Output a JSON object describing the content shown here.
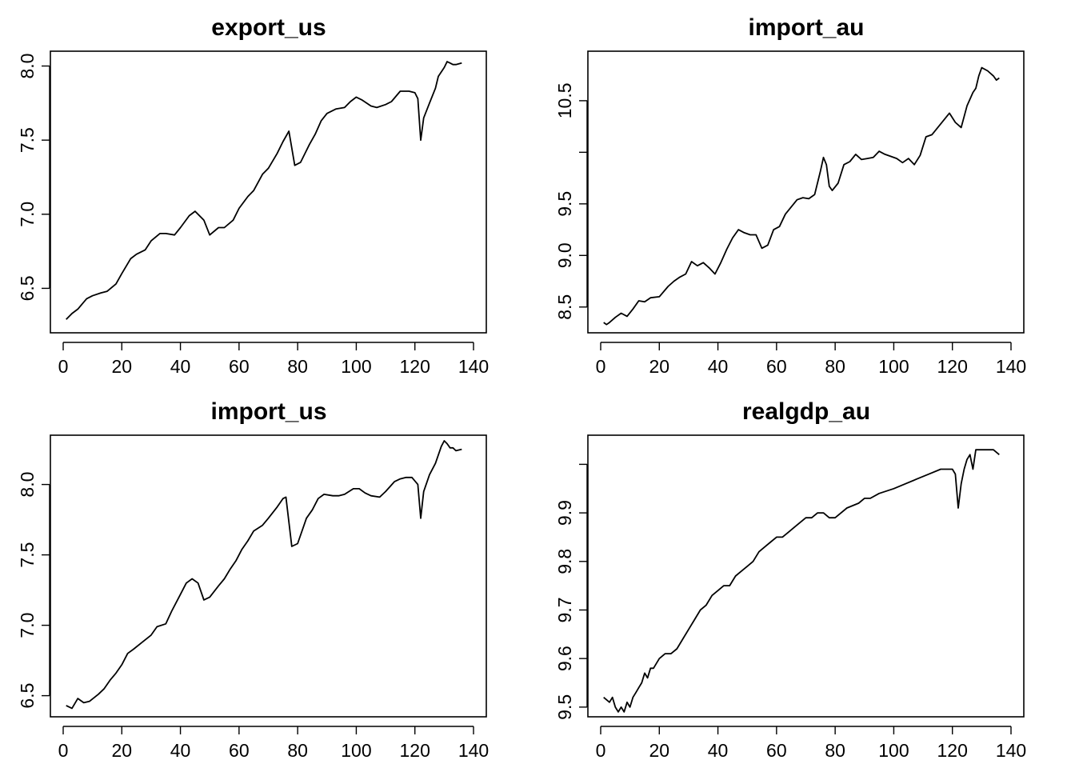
{
  "chart_data": [
    {
      "type": "line",
      "title": "export_us",
      "xlabel": "",
      "ylabel": "",
      "xlim": [
        0,
        140
      ],
      "ylim": [
        6.2,
        8.1
      ],
      "xticks": [
        0,
        20,
        40,
        60,
        80,
        100,
        120,
        140
      ],
      "yticks": [
        6.5,
        7.0,
        7.5,
        8.0
      ],
      "ytick_labels": [
        "6.5",
        "7.0",
        "7.5",
        "8.0"
      ],
      "grid": false,
      "series": [
        {
          "x": [
            1,
            3,
            5,
            8,
            10,
            13,
            15,
            18,
            20,
            23,
            25,
            28,
            30,
            33,
            35,
            38,
            40,
            43,
            45,
            48,
            50,
            53,
            55,
            58,
            60,
            63,
            65,
            68,
            70,
            73,
            75,
            77,
            79,
            81,
            84,
            86,
            88,
            90,
            93,
            96,
            98,
            100,
            102,
            105,
            107,
            110,
            112,
            115,
            118,
            120,
            121,
            122,
            123,
            125,
            127,
            128,
            130,
            131,
            132,
            133,
            134,
            136
          ],
          "y": [
            6.29,
            6.33,
            6.36,
            6.43,
            6.45,
            6.47,
            6.48,
            6.53,
            6.6,
            6.7,
            6.73,
            6.76,
            6.82,
            6.87,
            6.87,
            6.86,
            6.91,
            6.99,
            7.02,
            6.96,
            6.86,
            6.91,
            6.91,
            6.96,
            7.04,
            7.12,
            7.16,
            7.27,
            7.31,
            7.41,
            7.49,
            7.56,
            7.33,
            7.35,
            7.47,
            7.54,
            7.63,
            7.68,
            7.71,
            7.72,
            7.76,
            7.79,
            7.77,
            7.73,
            7.72,
            7.74,
            7.76,
            7.83,
            7.83,
            7.82,
            7.78,
            7.5,
            7.65,
            7.75,
            7.85,
            7.93,
            7.99,
            8.03,
            8.02,
            8.01,
            8.01,
            8.02
          ]
        }
      ]
    },
    {
      "type": "line",
      "title": "import_au",
      "xlabel": "",
      "ylabel": "",
      "xlim": [
        0,
        140
      ],
      "ylim": [
        8.25,
        10.98
      ],
      "xticks": [
        0,
        20,
        40,
        60,
        80,
        100,
        120,
        140
      ],
      "yticks": [
        8.5,
        9.0,
        9.5,
        10.0,
        10.5
      ],
      "ytick_labels": [
        "8.5",
        "9.0",
        "9.5",
        "",
        "10.5"
      ],
      "grid": false,
      "series": [
        {
          "x": [
            1,
            2,
            3,
            5,
            7,
            9,
            11,
            13,
            15,
            17,
            20,
            23,
            25,
            27,
            29,
            31,
            33,
            35,
            37,
            39,
            41,
            43,
            45,
            47,
            49,
            51,
            53,
            55,
            57,
            59,
            61,
            63,
            65,
            67,
            69,
            71,
            73,
            75,
            76,
            77,
            78,
            79,
            81,
            83,
            85,
            87,
            89,
            91,
            93,
            95,
            97,
            99,
            101,
            103,
            105,
            107,
            109,
            111,
            113,
            115,
            117,
            119,
            121,
            123,
            125,
            127,
            128,
            129,
            130,
            132,
            134,
            135,
            136
          ],
          "y": [
            8.35,
            8.33,
            8.35,
            8.4,
            8.44,
            8.41,
            8.48,
            8.56,
            8.55,
            8.59,
            8.6,
            8.7,
            8.75,
            8.79,
            8.82,
            8.94,
            8.9,
            8.93,
            8.88,
            8.82,
            8.93,
            9.06,
            9.17,
            9.25,
            9.22,
            9.2,
            9.2,
            9.07,
            9.1,
            9.25,
            9.28,
            9.4,
            9.47,
            9.54,
            9.56,
            9.55,
            9.59,
            9.82,
            9.95,
            9.88,
            9.67,
            9.63,
            9.7,
            9.88,
            9.91,
            9.98,
            9.93,
            9.94,
            9.95,
            10.01,
            9.98,
            9.96,
            9.94,
            9.9,
            9.94,
            9.88,
            9.97,
            10.15,
            10.17,
            10.24,
            10.31,
            10.38,
            10.29,
            10.24,
            10.45,
            10.58,
            10.62,
            10.74,
            10.82,
            10.79,
            10.74,
            10.7,
            10.72
          ]
        }
      ]
    },
    {
      "type": "line",
      "title": "import_us",
      "xlabel": "",
      "ylabel": "",
      "xlim": [
        0,
        140
      ],
      "ylim": [
        6.35,
        8.35
      ],
      "xticks": [
        0,
        20,
        40,
        60,
        80,
        100,
        120,
        140
      ],
      "yticks": [
        6.5,
        7.0,
        7.5,
        8.0
      ],
      "ytick_labels": [
        "6.5",
        "7.0",
        "7.5",
        "8.0"
      ],
      "grid": false,
      "series": [
        {
          "x": [
            1,
            3,
            5,
            7,
            9,
            12,
            14,
            16,
            18,
            20,
            22,
            24,
            27,
            30,
            32,
            35,
            37,
            40,
            42,
            44,
            46,
            48,
            50,
            53,
            55,
            57,
            59,
            61,
            63,
            65,
            68,
            70,
            73,
            75,
            76,
            78,
            80,
            83,
            85,
            87,
            89,
            92,
            94,
            96,
            99,
            101,
            103,
            105,
            108,
            110,
            113,
            115,
            117,
            119,
            121,
            122,
            123,
            125,
            127,
            129,
            130,
            131,
            132,
            133,
            134,
            136
          ],
          "y": [
            6.43,
            6.41,
            6.48,
            6.45,
            6.46,
            6.51,
            6.55,
            6.61,
            6.66,
            6.72,
            6.8,
            6.83,
            6.88,
            6.93,
            6.99,
            7.01,
            7.1,
            7.22,
            7.3,
            7.33,
            7.3,
            7.18,
            7.2,
            7.28,
            7.33,
            7.4,
            7.46,
            7.54,
            7.6,
            7.67,
            7.71,
            7.76,
            7.84,
            7.9,
            7.91,
            7.56,
            7.58,
            7.76,
            7.82,
            7.9,
            7.93,
            7.92,
            7.92,
            7.93,
            7.97,
            7.97,
            7.94,
            7.92,
            7.91,
            7.95,
            8.02,
            8.04,
            8.05,
            8.05,
            8.0,
            7.76,
            7.95,
            8.07,
            8.15,
            8.27,
            8.31,
            8.29,
            8.26,
            8.26,
            8.24,
            8.25
          ]
        }
      ]
    },
    {
      "type": "line",
      "title": "realgdp_au",
      "xlabel": "",
      "ylabel": "",
      "xlim": [
        0,
        140
      ],
      "ylim": [
        9.48,
        10.06
      ],
      "xticks": [
        0,
        20,
        40,
        60,
        80,
        100,
        120,
        140
      ],
      "yticks": [
        9.5,
        9.6,
        9.7,
        9.8,
        9.9,
        10.0
      ],
      "ytick_labels": [
        "9.5",
        "9.6",
        "9.7",
        "9.8",
        "9.9",
        ""
      ],
      "grid": false,
      "series": [
        {
          "x": [
            1,
            3,
            4,
            5,
            6,
            7,
            8,
            9,
            10,
            11,
            12,
            13,
            14,
            15,
            16,
            17,
            18,
            20,
            22,
            24,
            26,
            28,
            30,
            32,
            34,
            36,
            38,
            40,
            42,
            44,
            46,
            48,
            50,
            52,
            54,
            56,
            58,
            60,
            62,
            64,
            66,
            68,
            70,
            72,
            74,
            76,
            78,
            80,
            84,
            88,
            90,
            92,
            95,
            100,
            104,
            108,
            112,
            116,
            120,
            121,
            122,
            123,
            124,
            125,
            126,
            127,
            128,
            130,
            132,
            134,
            136
          ],
          "y": [
            9.52,
            9.51,
            9.52,
            9.5,
            9.49,
            9.5,
            9.49,
            9.51,
            9.5,
            9.52,
            9.53,
            9.54,
            9.55,
            9.57,
            9.56,
            9.58,
            9.58,
            9.6,
            9.61,
            9.61,
            9.62,
            9.64,
            9.66,
            9.68,
            9.7,
            9.71,
            9.73,
            9.74,
            9.75,
            9.75,
            9.77,
            9.78,
            9.79,
            9.8,
            9.82,
            9.83,
            9.84,
            9.85,
            9.85,
            9.86,
            9.87,
            9.88,
            9.89,
            9.89,
            9.9,
            9.9,
            9.89,
            9.89,
            9.91,
            9.92,
            9.93,
            9.93,
            9.94,
            9.95,
            9.96,
            9.97,
            9.98,
            9.99,
            9.99,
            9.98,
            9.91,
            9.96,
            9.99,
            10.01,
            10.02,
            9.99,
            10.03,
            10.03,
            10.03,
            10.03,
            10.02
          ]
        }
      ]
    }
  ]
}
